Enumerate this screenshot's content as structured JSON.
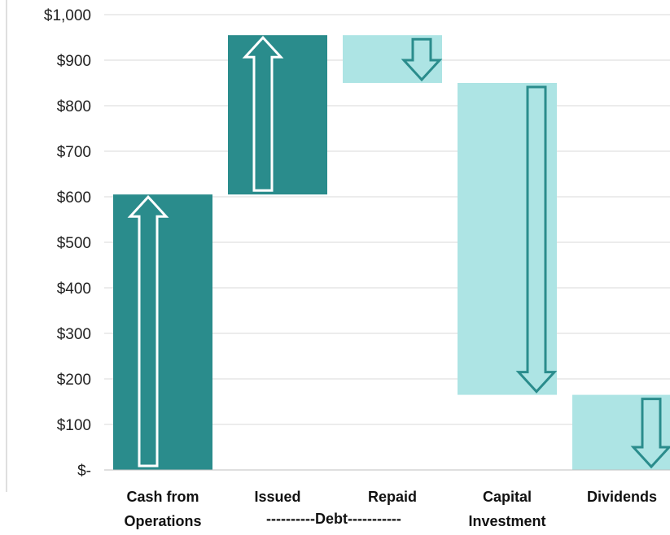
{
  "chart_data": {
    "type": "bar",
    "subtype": "waterfall",
    "title": "",
    "xlabel": "",
    "ylabel": "",
    "ylim": [
      0,
      1000
    ],
    "yticks": [
      0,
      100,
      200,
      300,
      400,
      500,
      600,
      700,
      800,
      900,
      1000
    ],
    "ytick_labels": [
      "$-",
      "$100",
      "$200",
      "$300",
      "$400",
      "$500",
      "$600",
      "$700",
      "$800",
      "$900",
      "$1,000"
    ],
    "grid": true,
    "legend": "none",
    "categories": [
      "Cash from Operations",
      "Issued",
      "Repaid",
      "Capital Investment",
      "Dividends"
    ],
    "category_label_lines": [
      [
        "Cash from",
        "Operations"
      ],
      [
        "Issued"
      ],
      [
        "Repaid"
      ],
      [
        "Capital",
        "Investment"
      ],
      [
        "Dividends"
      ]
    ],
    "group_label": "----------Debt-----------",
    "bars": [
      {
        "category": "Cash from Operations",
        "start": 0,
        "end": 605,
        "direction": "up"
      },
      {
        "category": "Issued",
        "start": 605,
        "end": 955,
        "direction": "up"
      },
      {
        "category": "Repaid",
        "start": 955,
        "end": 850,
        "direction": "down"
      },
      {
        "category": "Capital Investment",
        "start": 850,
        "end": 165,
        "direction": "down"
      },
      {
        "category": "Dividends",
        "start": 165,
        "end": 0,
        "direction": "down"
      }
    ],
    "colors": {
      "increase": "#2a8c8c",
      "decrease": "#ade4e4",
      "arrow_outline": "#2a8c8c"
    }
  }
}
